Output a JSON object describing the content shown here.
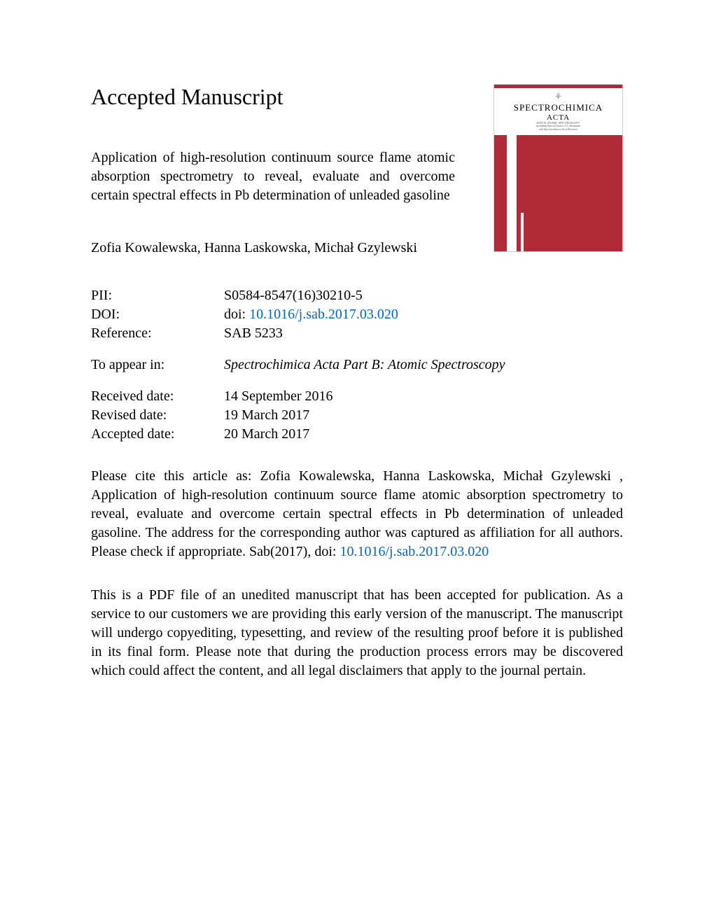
{
  "heading": "Accepted Manuscript",
  "title": "Application of high-resolution continuum source flame atomic absorption spectrometry to reveal, evaluate and overcome certain spectral effects in Pb determination of unleaded gasoline",
  "authors": "Zofia Kowalewska, Hanna Laskowska, Michał Gzylewski",
  "journal_cover": {
    "name": "SPECTROCHIMICA",
    "subtitle": "ACTA",
    "tagline1": "PART B: ATOMIC SPECTROSCOPY",
    "tagline2": "including Special Issues of Colloquium",
    "tagline3": "and Spectrochimica Acta Reviews",
    "accent_color": "#b12a38",
    "background_color": "#ffffff"
  },
  "meta": {
    "pii_label": "PII:",
    "pii_value": "S0584-8547(16)30210-5",
    "doi_label": "DOI:",
    "doi_prefix": "doi: ",
    "doi_link": "10.1016/j.sab.2017.03.020",
    "ref_label": "Reference:",
    "ref_value": "SAB 5233",
    "appear_label": "To appear in:",
    "appear_value": "Spectrochimica Acta Part B: Atomic Spectroscopy",
    "received_label": "Received date:",
    "received_value": "14 September 2016",
    "revised_label": "Revised date:",
    "revised_value": "19 March 2017",
    "accepted_label": "Accepted date:",
    "accepted_value": "20 March 2017"
  },
  "citation_prefix": "Please cite this article as: Zofia Kowalewska, Hanna Laskowska, Michał Gzylewski , Application of high-resolution continuum source flame atomic absorption spectrometry to reveal, evaluate and overcome certain spectral effects in Pb determination of unleaded gasoline. The address for the corresponding author was captured as affiliation for all authors. Please check if appropriate. Sab(2017), doi: ",
  "citation_doi": "10.1016/j.sab.2017.03.020",
  "disclaimer": "This is a PDF file of an unedited manuscript that has been accepted for publication. As a service to our customers we are providing this early version of the manuscript. The manuscript will undergo copyediting, typesetting, and review of the resulting proof before it is published in its final form. Please note that during the production process errors may be discovered which could affect the content, and all legal disclaimers that apply to the journal pertain.",
  "colors": {
    "text": "#000000",
    "link": "#0066cc",
    "background": "#ffffff"
  },
  "typography": {
    "heading_fontsize": 32,
    "body_fontsize": 20,
    "font_family": "Times New Roman"
  }
}
